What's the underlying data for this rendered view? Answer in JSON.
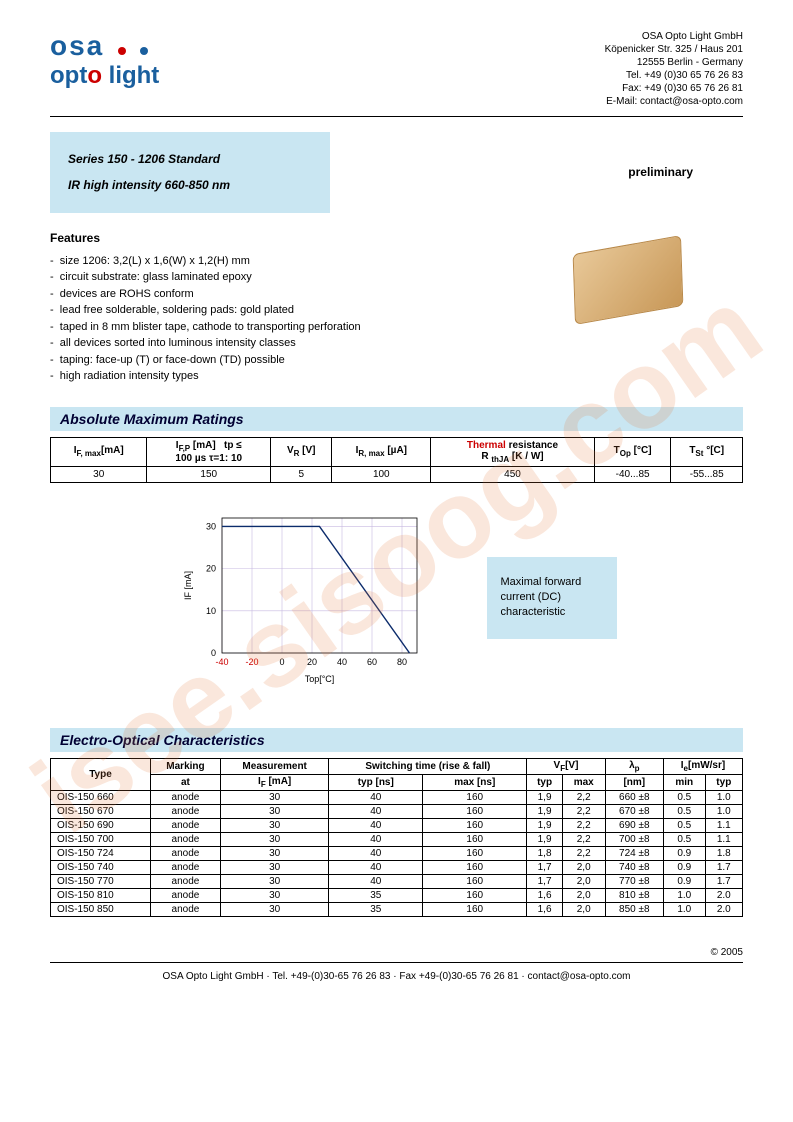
{
  "company": {
    "name": "OSA Opto Light GmbH",
    "addr1": "Köpenicker Str. 325 / Haus 201",
    "addr2": "12555 Berlin - Germany",
    "tel": "Tel. +49 (0)30 65 76 26 83",
    "fax": "Fax: +49 (0)30 65 76 26 81",
    "email": "E-Mail: contact@osa-opto.com"
  },
  "logo": {
    "line1": "osa",
    "line2a": "opt",
    "line2b": "o",
    "line2c": " light"
  },
  "series": {
    "line1": "Series 150 - 1206 Standard",
    "line2": "IR high intensity 660-850 nm"
  },
  "preliminary": "preliminary",
  "features_title": "Features",
  "features": [
    "size 1206: 3,2(L) x 1,6(W) x 1,2(H) mm",
    "circuit substrate: glass laminated epoxy",
    "devices are ROHS conform",
    "lead free solderable, soldering pads: gold plated",
    "taped in 8 mm blister tape, cathode to transporting perforation",
    "all devices sorted into luminous intensity classes",
    "taping: face-up (T) or face-down (TD) possible",
    "high radiation intensity types"
  ],
  "band1": "Absolute Maximum Ratings",
  "ratings": {
    "headers": [
      "IF, max[mA]",
      "IF,P [mA]   tp ≤ 100 µs τ=1: 10",
      "VR [V]",
      "IR, max [µA]",
      "Thermal resistance R thJA [K / W]",
      "TOp [°C]",
      "TSt °[C]"
    ],
    "row": [
      "30",
      "150",
      "5",
      "100",
      "450",
      "-40...85",
      "-55...85"
    ]
  },
  "chart": {
    "type": "line",
    "xlabel": "Top[°C]",
    "ylabel": "IF [mA]",
    "xlim": [
      -40,
      90
    ],
    "ylim": [
      0,
      32
    ],
    "xticks": [
      -40,
      -20,
      0,
      20,
      40,
      60,
      80
    ],
    "yticks": [
      0,
      10,
      20,
      30
    ],
    "line_color": "#0b2b6b",
    "grid_color": "#c7b9e0",
    "points": [
      [
        -40,
        30
      ],
      [
        25,
        30
      ],
      [
        85,
        0
      ]
    ],
    "background": "#ffffff",
    "label_fontsize": 9
  },
  "chart_caption": "Maximal forward current (DC) characteristic",
  "band2": "Electro-Optical Characteristics",
  "eo": {
    "head1": [
      "Type",
      "Marking at",
      "Measurement IF [mA]",
      "Switching time (rise & fall)",
      "VF[V]",
      "λp",
      "Ie[mW/sr]"
    ],
    "head2_switch": [
      "typ [ns]",
      "max [ns]"
    ],
    "head2_vf": [
      "typ",
      "max"
    ],
    "head2_lp": "[nm]",
    "head2_ie": [
      "min",
      "typ"
    ],
    "rows": [
      [
        "OIS-150 660",
        "anode",
        "30",
        "40",
        "160",
        "1,9",
        "2,2",
        "660 ±8",
        "0.5",
        "1.0"
      ],
      [
        "OIS-150 670",
        "anode",
        "30",
        "40",
        "160",
        "1,9",
        "2,2",
        "670 ±8",
        "0.5",
        "1.0"
      ],
      [
        "OIS-150 690",
        "anode",
        "30",
        "40",
        "160",
        "1,9",
        "2,2",
        "690 ±8",
        "0.5",
        "1.1"
      ],
      [
        "OIS-150 700",
        "anode",
        "30",
        "40",
        "160",
        "1,9",
        "2,2",
        "700 ±8",
        "0.5",
        "1.1"
      ],
      [
        "OIS-150 724",
        "anode",
        "30",
        "40",
        "160",
        "1,8",
        "2,2",
        "724 ±8",
        "0.9",
        "1.8"
      ],
      [
        "OIS-150 740",
        "anode",
        "30",
        "40",
        "160",
        "1,7",
        "2,0",
        "740 ±8",
        "0.9",
        "1.7"
      ],
      [
        "OIS-150 770",
        "anode",
        "30",
        "40",
        "160",
        "1,7",
        "2,0",
        "770 ±8",
        "0.9",
        "1.7"
      ],
      [
        "OIS-150 810",
        "anode",
        "30",
        "35",
        "160",
        "1,6",
        "2,0",
        "810 ±8",
        "1.0",
        "2.0"
      ],
      [
        "OIS-150 850",
        "anode",
        "30",
        "35",
        "160",
        "1,6",
        "2,0",
        "850 ±8",
        "1.0",
        "2.0"
      ]
    ]
  },
  "copyright": "© 2005",
  "footer": "OSA Opto Light GmbH · Tel. +49-(0)30-65 76 26 83 · Fax +49-(0)30-65 76 26 81 · contact@osa-opto.com",
  "watermark": "isee.sisoog.com",
  "colors": {
    "band_bg": "#c9e6f2",
    "logo_blue": "#1a5f9e",
    "logo_red": "#c00"
  }
}
